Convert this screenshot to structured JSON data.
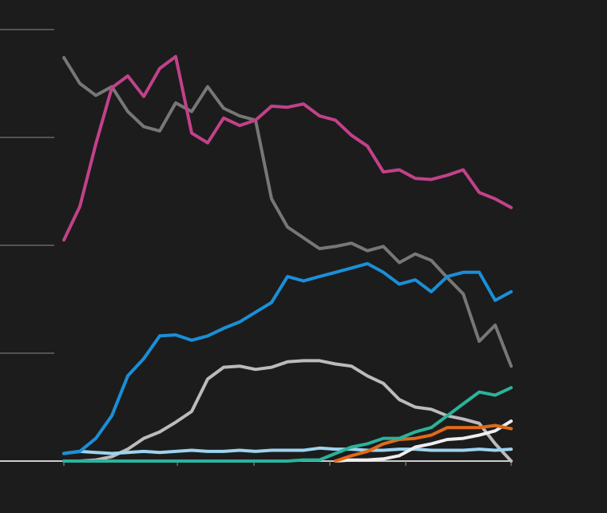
{
  "chart_data": {
    "type": "line",
    "x": [
      0,
      2,
      4,
      6,
      8,
      10,
      12,
      14,
      16,
      18,
      20,
      22,
      24,
      26,
      28,
      30,
      32,
      34,
      36,
      38,
      40,
      42,
      44,
      46,
      48,
      50,
      52,
      54,
      56
    ],
    "xlim": [
      0,
      56
    ],
    "xticks": [
      0,
      14.2,
      23.8,
      33.3,
      42.8,
      56
    ],
    "ylim": [
      0,
      40
    ],
    "yticks": [
      0,
      10,
      20,
      30,
      40
    ],
    "grid": true,
    "series": [
      {
        "color": "#bbbbbb",
        "values": [
          0,
          0,
          0.1,
          0.4,
          1.1,
          2.1,
          2.7,
          3.6,
          4.6,
          7.6,
          8.7,
          8.8,
          8.5,
          8.7,
          9.2,
          9.3,
          9.3,
          9.0,
          8.8,
          7.9,
          7.2,
          5.7,
          5.0,
          4.8,
          4.2,
          3.9,
          3.5,
          1.6,
          0
        ]
      },
      {
        "color": "#777777",
        "values": [
          37.4,
          35.0,
          33.9,
          34.7,
          32.4,
          31.0,
          30.6,
          33.2,
          32.4,
          34.7,
          32.7,
          32.0,
          31.6,
          24.3,
          21.7,
          20.7,
          19.7,
          19.9,
          20.2,
          19.5,
          19.9,
          18.4,
          19.2,
          18.6,
          17.0,
          15.5,
          11.1,
          12.6,
          8.8
        ]
      },
      {
        "color": "#9dd3f0",
        "values": [
          0.7,
          0.9,
          0.8,
          0.7,
          0.8,
          0.9,
          0.8,
          0.9,
          1.0,
          0.9,
          0.9,
          1.0,
          0.9,
          1.0,
          1.0,
          1.0,
          1.2,
          1.1,
          1.1,
          1.0,
          1.0,
          1.1,
          1.1,
          1.0,
          1.0,
          1.0,
          1.1,
          1.0,
          1.1
        ]
      },
      {
        "color": "#eeeeee",
        "values": [
          null,
          null,
          null,
          null,
          null,
          null,
          null,
          null,
          null,
          null,
          null,
          null,
          null,
          null,
          null,
          null,
          null,
          0,
          0.1,
          0.1,
          0.2,
          0.5,
          1.3,
          1.6,
          2.0,
          2.1,
          2.4,
          2.8,
          3.7
        ]
      },
      {
        "color": "#e06a1a",
        "values": [
          null,
          null,
          null,
          null,
          null,
          null,
          null,
          null,
          null,
          null,
          null,
          null,
          null,
          null,
          null,
          null,
          null,
          0,
          0.5,
          0.9,
          1.6,
          2.0,
          2.1,
          2.4,
          3.1,
          3.1,
          3.1,
          3.3,
          3.0
        ]
      },
      {
        "color": "#2bb39b",
        "values": [
          0,
          0,
          0,
          0,
          0,
          0,
          0,
          0,
          0,
          0,
          0,
          0,
          0,
          0,
          0,
          0.1,
          0.1,
          0.7,
          1.3,
          1.6,
          2.1,
          2.1,
          2.7,
          3.1,
          4.2,
          5.3,
          6.4,
          6.1,
          6.8
        ]
      },
      {
        "color": "#1a8fd8",
        "values": [
          0.7,
          0.9,
          2.1,
          4.2,
          7.9,
          9.5,
          11.6,
          11.7,
          11.2,
          11.6,
          12.3,
          12.9,
          13.8,
          14.7,
          17.1,
          16.7,
          17.1,
          17.5,
          17.9,
          18.3,
          17.5,
          16.4,
          16.8,
          15.7,
          17.1,
          17.5,
          17.5,
          14.9,
          15.7
        ]
      },
      {
        "color": "#c2418a",
        "values": [
          20.5,
          23.6,
          29.4,
          34.6,
          35.7,
          33.8,
          36.4,
          37.5,
          30.4,
          29.5,
          31.8,
          31.1,
          31.6,
          32.9,
          32.8,
          33.1,
          32.0,
          31.6,
          30.2,
          29.2,
          26.8,
          27.0,
          26.2,
          26.1,
          26.5,
          27.0,
          24.9,
          24.3,
          23.5
        ]
      }
    ]
  }
}
